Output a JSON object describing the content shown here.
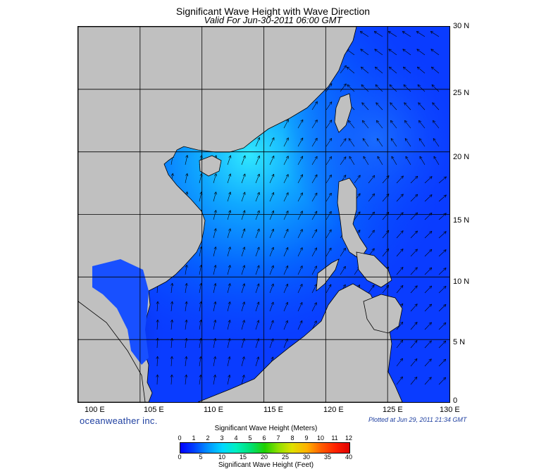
{
  "header": {
    "title": "Significant Wave Height with Wave Direction",
    "valid": "Valid For Jun-30-2011 06:00 GMT"
  },
  "map": {
    "lat_labels": [
      "30 N",
      "25 N",
      "20 N",
      "15 N",
      "10 N",
      "5 N",
      "0"
    ],
    "lon_labels": [
      "100 E",
      "105 E",
      "110 E",
      "115 E",
      "120 E",
      "125 E",
      "130 E"
    ],
    "lat_range": [
      0,
      30
    ],
    "lon_range": [
      100,
      130
    ],
    "land_color": "#c0c0c0",
    "ocean_base_color": "#0a3cff"
  },
  "footer": {
    "brand": "oceanweather inc.",
    "plotted": "Plotted at Jun 29, 2011 21:34 GMT"
  },
  "colorbar": {
    "title_meters": "Significant Wave Height (Meters)",
    "title_feet": "Significant Wave Height (Feet)",
    "meters_ticks": [
      "0",
      "1",
      "2",
      "3",
      "4",
      "5",
      "6",
      "7",
      "8",
      "9",
      "10",
      "11",
      "12"
    ],
    "feet_ticks": [
      "0",
      "5",
      "10",
      "15",
      "20",
      "25",
      "30",
      "35",
      "40"
    ]
  }
}
